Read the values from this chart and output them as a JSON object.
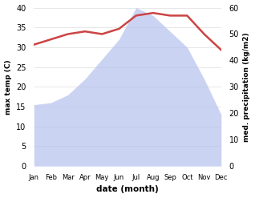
{
  "months": [
    "Jan",
    "Feb",
    "Mar",
    "Apr",
    "May",
    "Jun",
    "Jul",
    "Aug",
    "Sep",
    "Oct",
    "Nov",
    "Dec"
  ],
  "temperature": [
    15.5,
    16,
    18,
    22,
    27,
    32,
    40,
    38,
    34,
    30,
    22,
    13
  ],
  "precipitation": [
    46,
    48,
    50,
    51,
    50,
    52,
    57,
    58,
    57,
    57,
    50,
    44
  ],
  "temp_ylim": [
    0,
    40
  ],
  "precip_ylim": [
    0,
    60
  ],
  "temp_fill_color": "#b0bcee",
  "temp_fill_alpha": 0.65,
  "precip_line_color": "#cc4444",
  "xlabel": "date (month)",
  "ylabel_left": "max temp (C)",
  "ylabel_right": "med. precipitation (kg/m2)",
  "bg_color": "#ffffff",
  "fig_bg_color": "#ffffff"
}
